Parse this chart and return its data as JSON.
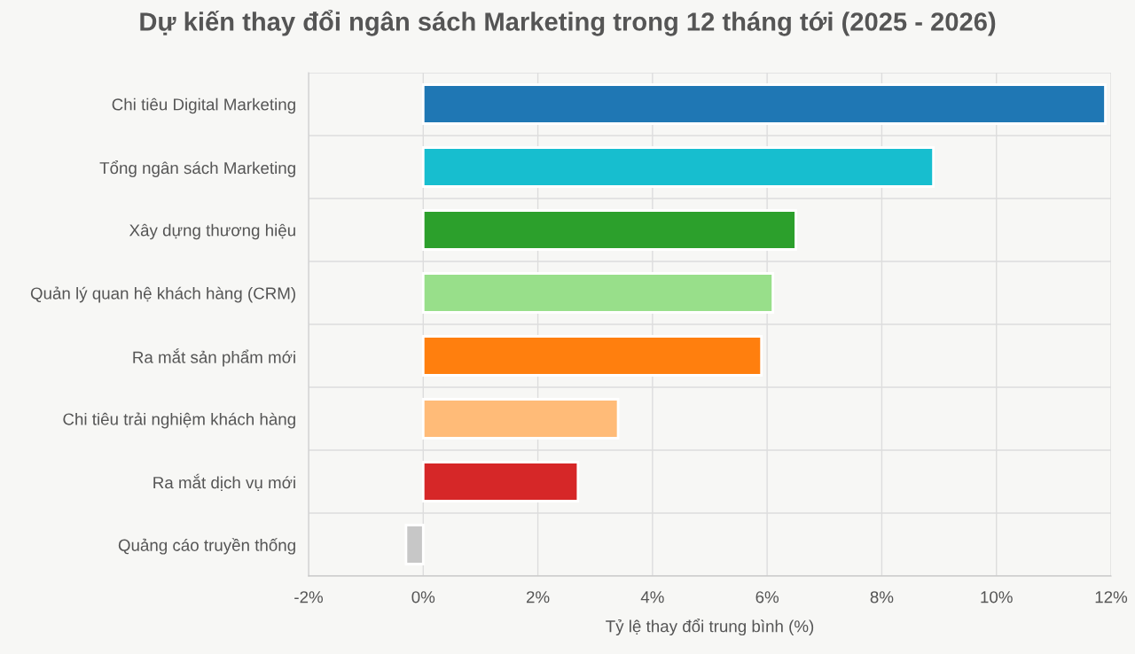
{
  "chart_data": {
    "type": "bar",
    "orientation": "horizontal",
    "title": "Dự kiến thay đổi ngân sách Marketing trong 12 tháng tới (2025 - 2026)",
    "xlabel": "Tỷ lệ thay đổi trung bình (%)",
    "categories": [
      "Chi tiêu Digital Marketing",
      "Tổng ngân sách Marketing",
      "Xây dựng thương hiệu",
      "Quản lý quan hệ khách hàng (CRM)",
      "Ra mắt sản phẩm mới",
      "Chi tiêu trải nghiệm khách hàng",
      "Ra mắt dịch vụ mới",
      "Quảng cáo truyền thống"
    ],
    "values": [
      11.9,
      8.9,
      6.5,
      6.1,
      5.9,
      3.4,
      2.7,
      -0.3
    ],
    "colors": [
      "#1f77b4",
      "#17becf",
      "#2ca02c",
      "#98df8a",
      "#ff7f0e",
      "#ffbb78",
      "#d62728",
      "#c7c7c7"
    ],
    "xlim": [
      -2,
      12
    ],
    "xticks": [
      {
        "value": -2,
        "label": "-2%"
      },
      {
        "value": 0,
        "label": "0%"
      },
      {
        "value": 2,
        "label": "2%"
      },
      {
        "value": 4,
        "label": "4%"
      },
      {
        "value": 6,
        "label": "6%"
      },
      {
        "value": 8,
        "label": "8%"
      },
      {
        "value": 10,
        "label": "10%"
      },
      {
        "value": 12,
        "label": "12%"
      }
    ],
    "grid": true
  }
}
